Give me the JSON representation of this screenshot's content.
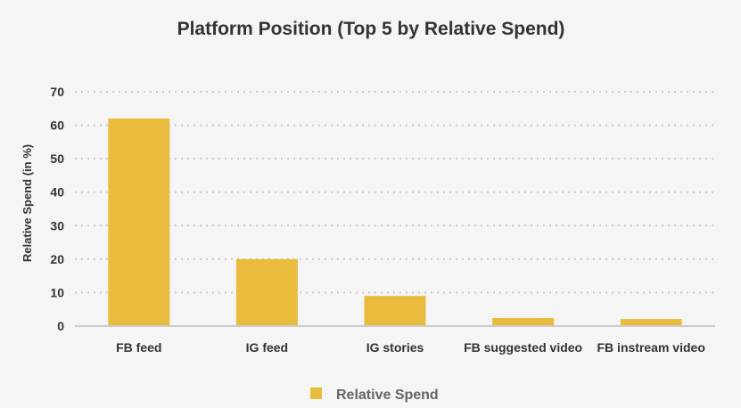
{
  "chart_data": {
    "type": "bar",
    "title": "Platform Position (Top 5 by Relative Spend)",
    "xlabel": "",
    "ylabel": "Relative Spend (in %)",
    "categories": [
      "FB feed",
      "IG feed",
      "IG stories",
      "FB suggested video",
      "FB instream video"
    ],
    "series": [
      {
        "name": "Relative Spend",
        "values": [
          62,
          20,
          9,
          2.4,
          2.1
        ],
        "color": "#e9bc3e"
      }
    ],
    "ylim": [
      0,
      70
    ],
    "yticks": [
      0,
      10,
      20,
      30,
      40,
      50,
      60,
      70
    ],
    "grid": true,
    "legend": "bottom-center"
  }
}
